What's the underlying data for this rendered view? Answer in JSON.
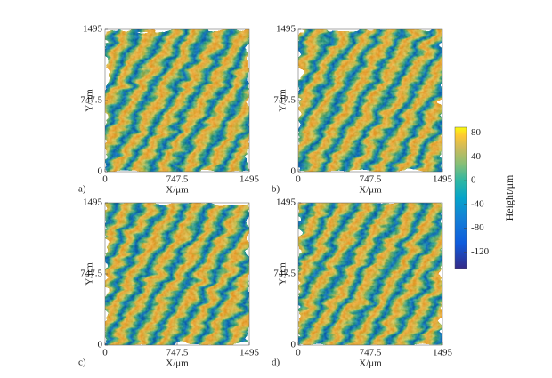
{
  "chart_data": [
    {
      "type": "heatmap",
      "panel_label": "a)",
      "xlabel": "X/μm",
      "ylabel": "Y/μm",
      "xlim": [
        0,
        1495
      ],
      "ylim": [
        0,
        1495
      ],
      "xticks": [
        0,
        747.5,
        1495
      ],
      "yticks": [
        0,
        747.5,
        1495
      ]
    },
    {
      "type": "heatmap",
      "panel_label": "b)",
      "xlabel": "X/μm",
      "ylabel": "Y/μm",
      "xlim": [
        0,
        1495
      ],
      "ylim": [
        0,
        1495
      ],
      "xticks": [
        0,
        747.5,
        1495
      ],
      "yticks": [
        0,
        747.5,
        1495
      ]
    },
    {
      "type": "heatmap",
      "panel_label": "c)",
      "xlabel": "X/μm",
      "ylabel": "Y/μm",
      "xlim": [
        0,
        1495
      ],
      "ylim": [
        0,
        1495
      ],
      "xticks": [
        0,
        747.5,
        1495
      ],
      "yticks": [
        0,
        747.5,
        1495
      ]
    },
    {
      "type": "heatmap",
      "panel_label": "d)",
      "xlabel": "X/μm",
      "ylabel": "Y/μm",
      "xlim": [
        0,
        1495
      ],
      "ylim": [
        0,
        1495
      ],
      "xticks": [
        0,
        747.5,
        1495
      ],
      "yticks": [
        0,
        747.5,
        1495
      ]
    }
  ],
  "colorbar": {
    "label": "Height/μm",
    "lim": [
      -148,
      90
    ],
    "ticks": [
      80,
      40,
      0,
      -40,
      -80,
      -120
    ]
  }
}
